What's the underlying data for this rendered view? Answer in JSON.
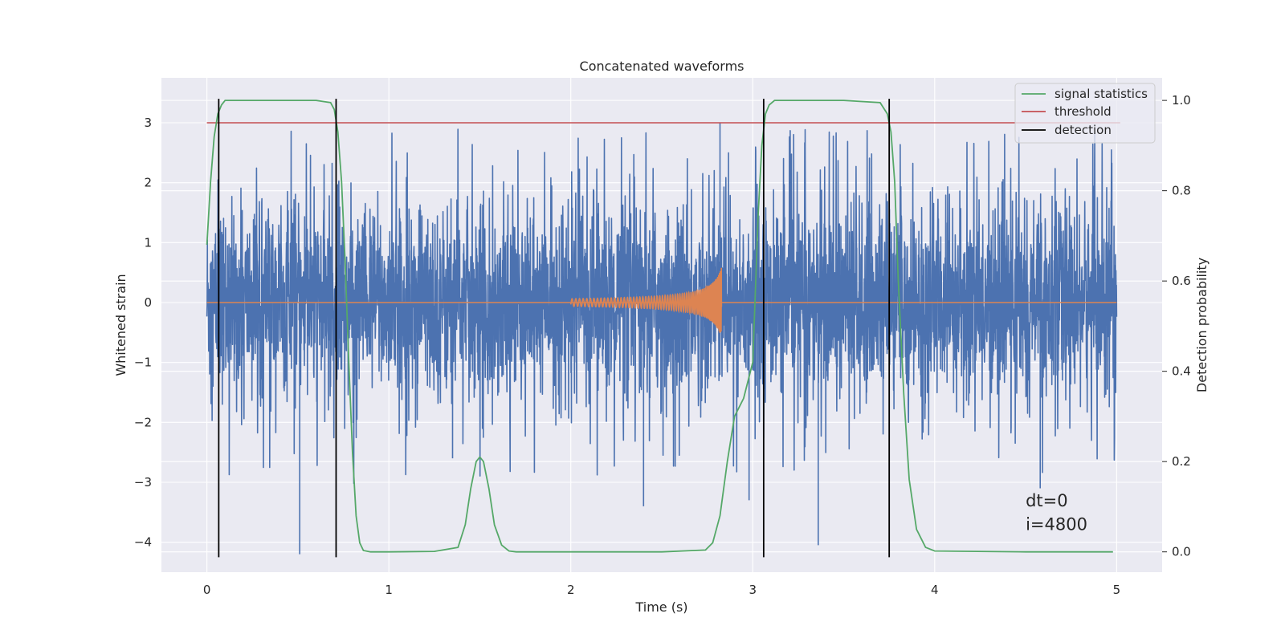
{
  "chart_data": {
    "type": "line",
    "title": "Concatenated waveforms",
    "xlabel": "Time (s)",
    "ylabel": "Whitened strain",
    "y2label": "Detection probability",
    "xlim": [
      -0.25,
      5.25
    ],
    "ylim": [
      -4.5,
      3.75
    ],
    "y2lim": [
      -0.045,
      1.05
    ],
    "xticks": [
      0,
      1,
      2,
      3,
      4,
      5
    ],
    "yticks": [
      -4,
      -3,
      -2,
      -1,
      0,
      1,
      2,
      3
    ],
    "y2ticks": [
      0.0,
      0.2,
      0.4,
      0.6,
      0.8,
      1.0
    ],
    "ytick_labels": [
      "−4",
      "−3",
      "−2",
      "−1",
      "0",
      "1",
      "2",
      "3"
    ],
    "y2tick_labels": [
      "0.0",
      "0.2",
      "0.4",
      "0.6",
      "0.8",
      "1.0"
    ],
    "grid": true,
    "legend": {
      "placement": "top-right",
      "entries": [
        {
          "name": "signal statistics",
          "color": "#55a868"
        },
        {
          "name": "threshold",
          "color": "#c44e52"
        },
        {
          "name": "detection",
          "color": "#000000"
        }
      ]
    },
    "colors": {
      "strain": "#4c72b0",
      "template": "#dd8452",
      "statistic": "#55a868",
      "threshold": "#c44e52",
      "detection": "#000000",
      "background": "#eaeaf2",
      "grid": "#ffffff"
    },
    "series": [
      {
        "name": "signal statistics",
        "axis": "right",
        "x": [
          0,
          0.02,
          0.04,
          0.06,
          0.08,
          0.1,
          0.12,
          0.15,
          0.2,
          0.4,
          0.6,
          0.68,
          0.7,
          0.72,
          0.74,
          0.76,
          0.78,
          0.8,
          0.82,
          0.84,
          0.86,
          0.9,
          1.0,
          1.25,
          1.38,
          1.42,
          1.45,
          1.48,
          1.5,
          1.52,
          1.55,
          1.58,
          1.62,
          1.66,
          1.7,
          2.0,
          2.5,
          2.74,
          2.78,
          2.82,
          2.86,
          2.9,
          2.95,
          3.0,
          3.03,
          3.05,
          3.07,
          3.09,
          3.12,
          3.2,
          3.5,
          3.7,
          3.74,
          3.76,
          3.78,
          3.8,
          3.83,
          3.86,
          3.9,
          3.95,
          4.0,
          4.5,
          4.98
        ],
        "y": [
          0.68,
          0.82,
          0.92,
          0.97,
          0.99,
          1.0,
          1.0,
          1.0,
          1.0,
          1.0,
          1.0,
          0.995,
          0.98,
          0.93,
          0.82,
          0.64,
          0.42,
          0.22,
          0.08,
          0.02,
          0.003,
          0.0,
          0.0,
          0.001,
          0.01,
          0.06,
          0.14,
          0.2,
          0.21,
          0.2,
          0.14,
          0.06,
          0.015,
          0.002,
          0.0,
          0.0,
          0.0,
          0.004,
          0.02,
          0.08,
          0.2,
          0.3,
          0.34,
          0.42,
          0.75,
          0.9,
          0.97,
          0.99,
          1.0,
          1.0,
          1.0,
          0.995,
          0.97,
          0.93,
          0.82,
          0.6,
          0.35,
          0.16,
          0.05,
          0.01,
          0.002,
          0.0,
          0.0
        ]
      },
      {
        "name": "threshold",
        "axis": "left",
        "x": [
          0,
          5.02
        ],
        "y": [
          3.0,
          3.0
        ]
      },
      {
        "name": "detection",
        "axis": "left",
        "type": "vlines",
        "x": [
          0.065,
          0.71,
          3.06,
          3.75
        ],
        "ymin": -4.25,
        "ymax": 3.4
      },
      {
        "name": "",
        "axis": "left",
        "type": "noise",
        "x_range": [
          0,
          5
        ],
        "typical_envelope": [
          -1.3,
          1.3
        ],
        "spike_max": 2.95,
        "spike_min": -4.2
      },
      {
        "name": "",
        "axis": "left",
        "type": "chirp",
        "x_range": [
          2.0,
          2.83
        ],
        "amplitude_peak": 0.65,
        "baseline_x": [
          0,
          5
        ],
        "baseline_y": 0
      }
    ],
    "annotations": [
      {
        "text": "dt=0",
        "x": 4.5,
        "y": -3.4
      },
      {
        "text": "i=4800",
        "x": 4.5,
        "y": -3.8
      }
    ]
  }
}
